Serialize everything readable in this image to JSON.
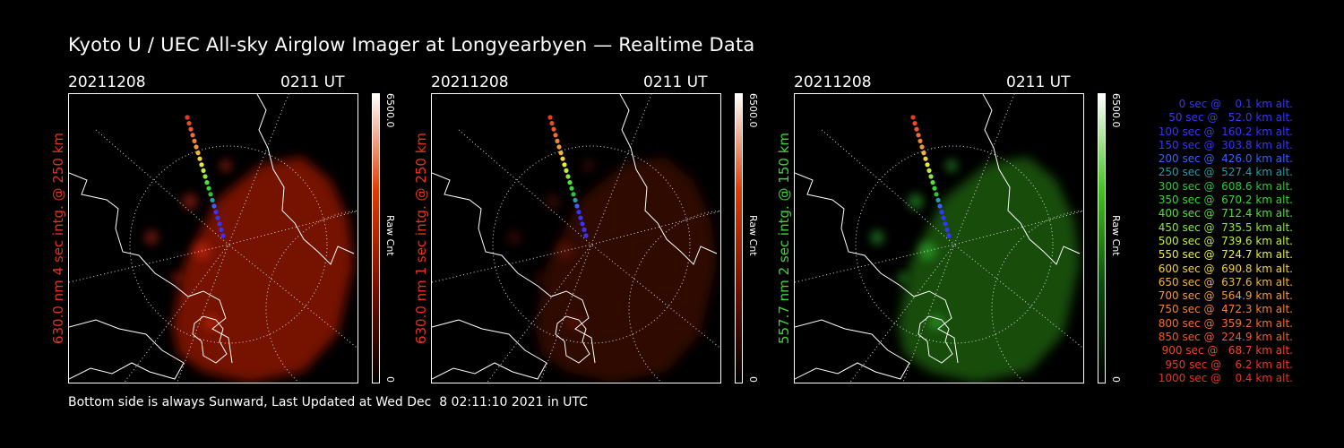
{
  "header": {
    "title": "Kyoto U / UEC All-sky Airglow Imager at Longyearbyen — Realtime Data"
  },
  "panels": [
    {
      "date": "20211208",
      "time": "0211 UT",
      "label": "630.0 nm 4 sec intg. @ 250 km",
      "label_color": "#e8321e",
      "colorbar": {
        "max": "6500.0",
        "unit": "Raw Cnt",
        "min": "0",
        "gradient": [
          "#000000",
          "#7a1000",
          "#e03c00",
          "#ffffff"
        ]
      },
      "glow_color": "#8a1206",
      "glow_opacity": 0.85
    },
    {
      "date": "20211208",
      "time": "0211 UT",
      "label": "630.0 nm 1 sec intg. @ 250 km",
      "label_color": "#e8321e",
      "colorbar": {
        "max": "6500.0",
        "unit": "Raw Cnt",
        "min": "0",
        "gradient": [
          "#000000",
          "#7a1000",
          "#e03c00",
          "#ffffff"
        ]
      },
      "glow_color": "#3a0804",
      "glow_opacity": 0.8
    },
    {
      "date": "20211208",
      "time": "0211 UT",
      "label": "557.7 nm 2 sec intg. @ 150 km",
      "label_color": "#3ed43e",
      "colorbar": {
        "max": "6500.0",
        "unit": "Raw Cnt",
        "min": "0",
        "gradient": [
          "#000000",
          "#0c4a0c",
          "#44c020",
          "#ffffff"
        ]
      },
      "glow_color": "#1e5a10",
      "glow_opacity": 0.85
    }
  ],
  "legend": [
    {
      "text": "   0 sec @    0.1 km alt.",
      "color": "#3535ff"
    },
    {
      "text": "  50 sec @   52.0 km alt.",
      "color": "#3535ff"
    },
    {
      "text": " 100 sec @  160.2 km alt.",
      "color": "#3535ff"
    },
    {
      "text": " 150 sec @  303.8 km alt.",
      "color": "#3535ff"
    },
    {
      "text": " 200 sec @  426.0 km alt.",
      "color": "#3a60ff"
    },
    {
      "text": " 250 sec @  527.4 km alt.",
      "color": "#2a9aa8"
    },
    {
      "text": " 300 sec @  608.6 km alt.",
      "color": "#2ec43a"
    },
    {
      "text": " 350 sec @  670.2 km alt.",
      "color": "#36d636"
    },
    {
      "text": " 400 sec @  712.4 km alt.",
      "color": "#52e03a"
    },
    {
      "text": " 450 sec @  735.5 km alt.",
      "color": "#8ee63a"
    },
    {
      "text": " 500 sec @  739.6 km alt.",
      "color": "#c2ec3a"
    },
    {
      "text": " 550 sec @  724.7 km alt.",
      "color": "#eaee3a"
    },
    {
      "text": " 600 sec @  690.8 km alt.",
      "color": "#f2d23a"
    },
    {
      "text": " 650 sec @  637.6 km alt.",
      "color": "#f2b63a"
    },
    {
      "text": " 700 sec @  564.9 km alt.",
      "color": "#f29a36"
    },
    {
      "text": " 750 sec @  472.3 km alt.",
      "color": "#f28236"
    },
    {
      "text": " 800 sec @  359.2 km alt.",
      "color": "#f06e32"
    },
    {
      "text": " 850 sec @  224.9 km alt.",
      "color": "#ee5a2e"
    },
    {
      "text": " 900 sec @   68.7 km alt.",
      "color": "#ec482a"
    },
    {
      "text": " 950 sec @    6.2 km alt.",
      "color": "#ea3a26"
    },
    {
      "text": "1000 sec @    0.4 km alt.",
      "color": "#e83222"
    }
  ],
  "footer": {
    "text": "Bottom side is always Sunward, Last Updated at Wed Dec  8 02:11:10 2021 in UTC"
  }
}
